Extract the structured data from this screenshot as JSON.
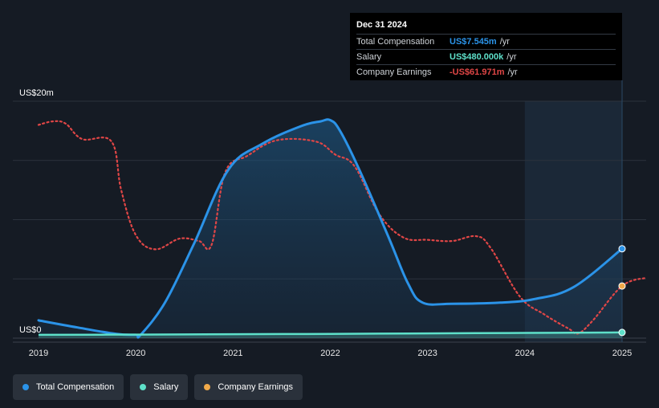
{
  "chart_data": {
    "type": "line",
    "x_ticks": [
      "2019",
      "2020",
      "2021",
      "2022",
      "2023",
      "2024",
      "2025"
    ],
    "y_ticks": [
      {
        "value": 20,
        "label": "US$20m"
      },
      {
        "value": 0,
        "label": "US$0"
      }
    ],
    "ylim": [
      0,
      20
    ],
    "xlim": [
      2019.0,
      2025.25
    ],
    "grid": true,
    "legend_position": "bottom-left",
    "highlight_range": [
      2024.0,
      2025.0
    ],
    "series": [
      {
        "name": "Total Compensation",
        "color": "#2b93e8",
        "style": "solid-area",
        "points": [
          [
            2019.0,
            1.5
          ],
          [
            2019.4,
            0.9
          ],
          [
            2019.8,
            0.35
          ],
          [
            2020.0,
            0.28
          ],
          [
            2020.05,
            0.28
          ],
          [
            2020.3,
            3.0
          ],
          [
            2020.6,
            8.0
          ],
          [
            2020.95,
            14.2
          ],
          [
            2021.3,
            16.4
          ],
          [
            2021.7,
            17.9
          ],
          [
            2021.9,
            18.3
          ],
          [
            2022.0,
            18.4
          ],
          [
            2022.1,
            17.5
          ],
          [
            2022.3,
            14.2
          ],
          [
            2022.6,
            8.5
          ],
          [
            2022.8,
            4.6
          ],
          [
            2022.95,
            3.0
          ],
          [
            2023.25,
            2.9
          ],
          [
            2023.75,
            3.0
          ],
          [
            2024.1,
            3.3
          ],
          [
            2024.5,
            4.3
          ],
          [
            2025.0,
            7.545
          ]
        ]
      },
      {
        "name": "Salary",
        "color": "#5ee0c9",
        "style": "solid",
        "points": [
          [
            2019.0,
            0.28
          ],
          [
            2020.0,
            0.3
          ],
          [
            2021.0,
            0.33
          ],
          [
            2022.0,
            0.36
          ],
          [
            2023.0,
            0.4
          ],
          [
            2024.0,
            0.44
          ],
          [
            2025.0,
            0.48
          ]
        ]
      },
      {
        "name": "Company Earnings",
        "color": "#e04646",
        "marker_color": "#f0a94a",
        "style": "dotted",
        "points": [
          [
            2019.0,
            18.0
          ],
          [
            2019.15,
            18.3
          ],
          [
            2019.28,
            18.1
          ],
          [
            2019.45,
            16.8
          ],
          [
            2019.75,
            16.6
          ],
          [
            2019.85,
            12.5
          ],
          [
            2020.0,
            8.7
          ],
          [
            2020.2,
            7.5
          ],
          [
            2020.45,
            8.4
          ],
          [
            2020.65,
            8.2
          ],
          [
            2020.78,
            7.9
          ],
          [
            2020.92,
            14.0
          ],
          [
            2021.15,
            15.4
          ],
          [
            2021.45,
            16.7
          ],
          [
            2021.85,
            16.6
          ],
          [
            2022.05,
            15.5
          ],
          [
            2022.25,
            14.5
          ],
          [
            2022.5,
            10.5
          ],
          [
            2022.75,
            8.5
          ],
          [
            2023.0,
            8.3
          ],
          [
            2023.25,
            8.2
          ],
          [
            2023.5,
            8.6
          ],
          [
            2023.65,
            7.6
          ],
          [
            2023.95,
            3.5
          ],
          [
            2024.2,
            2.0
          ],
          [
            2024.45,
            0.8
          ],
          [
            2024.55,
            0.4
          ],
          [
            2024.7,
            1.5
          ],
          [
            2025.0,
            4.4
          ],
          [
            2025.25,
            5.1
          ]
        ]
      }
    ]
  },
  "tooltip": {
    "date": "Dec 31 2024",
    "rows": [
      {
        "label": "Total Compensation",
        "value": "US$7.545m",
        "unit": "/yr",
        "color": "#2b93e8"
      },
      {
        "label": "Salary",
        "value": "US$480.000k",
        "unit": "/yr",
        "color": "#5ee0c9"
      },
      {
        "label": "Company Earnings",
        "value": "-US$61.971m",
        "unit": "/yr",
        "color": "#e04646"
      }
    ]
  },
  "legend": [
    {
      "label": "Total Compensation",
      "color": "#2b93e8"
    },
    {
      "label": "Salary",
      "color": "#5ee0c9"
    },
    {
      "label": "Company Earnings",
      "color": "#f0a94a"
    }
  ]
}
